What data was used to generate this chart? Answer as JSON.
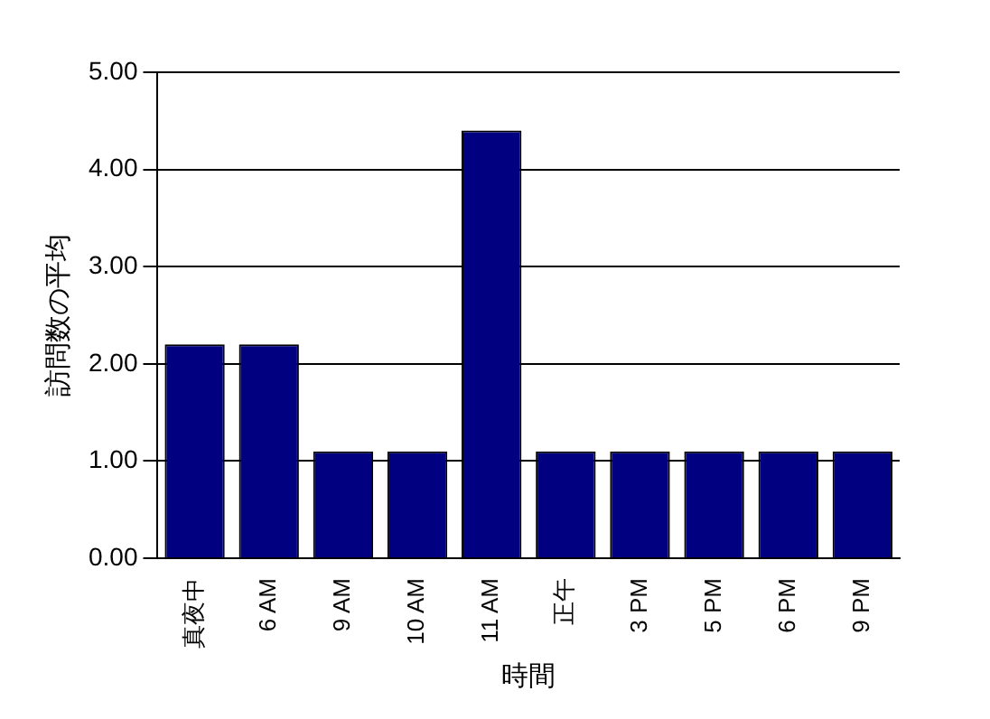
{
  "chart_data": {
    "type": "bar",
    "xlabel": "時間",
    "ylabel": "訪問数の平均",
    "categories": [
      "真夜中",
      "6 AM",
      "9 AM",
      "10 AM",
      "11 AM",
      "正午",
      "3 PM",
      "5 PM",
      "6 PM",
      "9 PM"
    ],
    "values": [
      2.2,
      2.2,
      1.1,
      1.1,
      4.4,
      1.1,
      1.1,
      1.1,
      1.1,
      1.1
    ],
    "color": "#000080",
    "ylim": [
      0,
      5
    ],
    "yticks": [
      {
        "value": 0,
        "label": "0.00"
      },
      {
        "value": 1,
        "label": "1.00"
      },
      {
        "value": 2,
        "label": "2.00"
      },
      {
        "value": 3,
        "label": "3.00"
      },
      {
        "value": 4,
        "label": "4.00"
      },
      {
        "value": 5,
        "label": "5.00"
      }
    ],
    "grid": "y",
    "legend": false
  }
}
